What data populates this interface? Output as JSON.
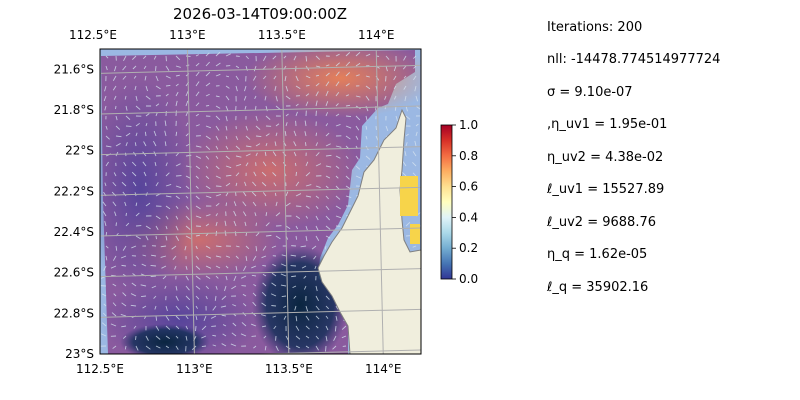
{
  "chart_data": {
    "type": "heatmap",
    "title": "2026-03-14T09:00:00Z",
    "x_ticks_top": [
      "112.5°E",
      "113°E",
      "113.5°E",
      "114°E"
    ],
    "x_ticks_bottom": [
      "112.5°E",
      "113°E",
      "113.5°E",
      "114°E"
    ],
    "y_ticks": [
      "21.6°S",
      "21.8°S",
      "22°S",
      "22.2°S",
      "22.4°S",
      "22.6°S",
      "22.8°S",
      "23°S"
    ],
    "lon_range": [
      112.5,
      114.2
    ],
    "lat_range": [
      -23.0,
      -21.5
    ],
    "grid": true,
    "overlay": "velocity-vectors",
    "colorbar": {
      "ticks": [
        "0.0",
        "0.2",
        "0.4",
        "0.6",
        "0.8",
        "1.0"
      ],
      "range": [
        0.0,
        1.0
      ],
      "colormap": "RdYlBu_r"
    },
    "colors": {
      "ocean_mask": "#9bb8e3",
      "land": "#f0eedd",
      "coast": "#7f7f7f",
      "grid": "#b0b0b0",
      "arrows": "#d5e2ef"
    }
  },
  "info": {
    "iterations": "Iterations: 200",
    "nll": "nll: -14478.774514977724",
    "sigma": "σ = 9.10e-07",
    "eta_uv1": ",η_uv1 = 1.95e-01",
    "eta_uv2": "η_uv2 = 4.38e-02",
    "ell_uv1": "ℓ_uv1 = 15527.89",
    "ell_uv2": "ℓ_uv2 = 9688.76",
    "eta_q": "η_q = 1.62e-05",
    "ell_q": "ℓ_q = 35902.16"
  }
}
